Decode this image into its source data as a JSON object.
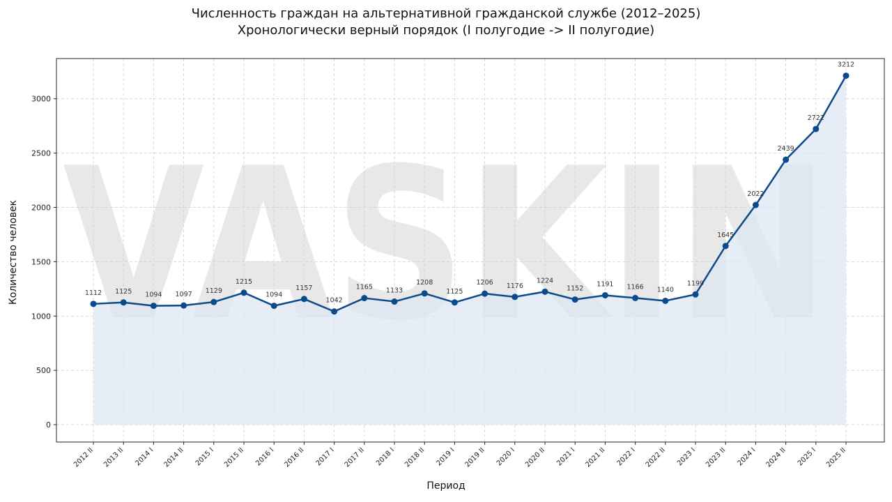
{
  "chart_data": {
    "type": "line",
    "title": "Численность граждан на альтернативной гражданской службе (2012–2025)",
    "subtitle": "Хронологически верный порядок (I полугодие -> II полугодие)",
    "xlabel": "Период",
    "ylabel": "Количество человек",
    "watermark": "VASKIN",
    "categories": [
      "2012 II",
      "2013 II",
      "2014 I",
      "2014 II",
      "2015 I",
      "2015 II",
      "2016 I",
      "2016 II",
      "2017 I",
      "2017 II",
      "2018 I",
      "2018 II",
      "2019 I",
      "2019 II",
      "2020 I",
      "2020 II",
      "2021 I",
      "2021 II",
      "2022 I",
      "2022 II",
      "2023 I",
      "2023 II",
      "2024 I",
      "2024 II",
      "2025 I",
      "2025 II"
    ],
    "series": [
      {
        "values": [
          1112,
          1125,
          1094,
          1097,
          1129,
          1215,
          1094,
          1157,
          1042,
          1165,
          1133,
          1208,
          1125,
          1206,
          1176,
          1224,
          1152,
          1191,
          1166,
          1140,
          1199,
          1645,
          2022,
          2439,
          2722,
          3212
        ]
      }
    ],
    "ylim": [
      -160,
      3370
    ],
    "yticks": [
      0,
      500,
      1000,
      1500,
      2000,
      2500,
      3000
    ],
    "grid": true,
    "line_color": "#0b4a8b",
    "fill_color": "#dfe7f3"
  }
}
